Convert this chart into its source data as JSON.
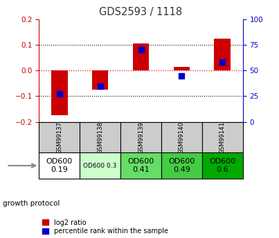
{
  "title": "GDS2593 / 1118",
  "samples": [
    "GSM99137",
    "GSM99138",
    "GSM99139",
    "GSM99140",
    "GSM99141"
  ],
  "log2_ratios": [
    -0.175,
    -0.075,
    0.105,
    0.015,
    0.125
  ],
  "percentile_ranks": [
    27,
    35,
    70,
    45,
    58
  ],
  "ylim_left": [
    -0.2,
    0.2
  ],
  "ylim_right": [
    0,
    100
  ],
  "yticks_left": [
    -0.2,
    -0.1,
    0.0,
    0.1,
    0.2
  ],
  "yticks_right": [
    0,
    25,
    50,
    75,
    100
  ],
  "bar_color_red": "#cc0000",
  "bar_color_blue": "#0000cc",
  "dot_size": 30,
  "bar_width": 0.4,
  "growth_protocol_labels": [
    "OD600\n0.19",
    "OD600 0.3",
    "OD600\n0.41",
    "OD600\n0.49",
    "OD600\n0.6"
  ],
  "growth_protocol_colors": [
    "#ffffff",
    "#ccffcc",
    "#66dd66",
    "#44cc44",
    "#00aa00"
  ],
  "growth_protocol_fontsizes": [
    8,
    6.5,
    8,
    8,
    8
  ],
  "sample_box_color": "#cccccc",
  "title_color": "#333333",
  "left_axis_color": "#cc0000",
  "right_axis_color": "#0000cc"
}
